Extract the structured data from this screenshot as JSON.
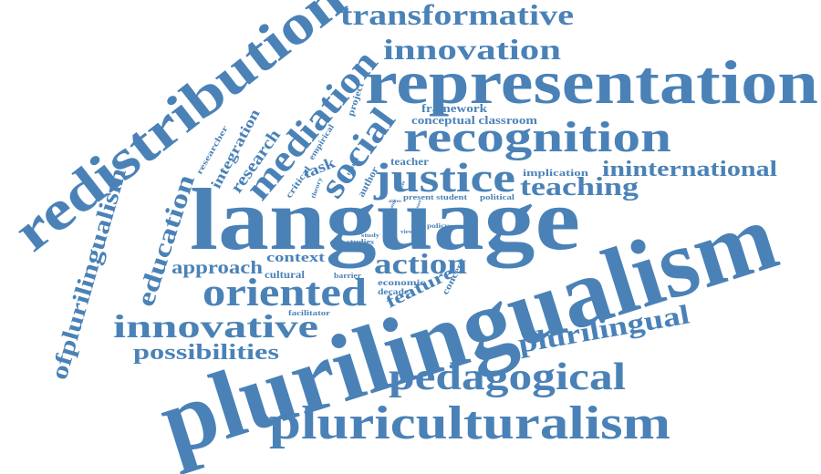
{
  "colors": {
    "word": "#4a82b7",
    "background": "#ffffff"
  },
  "words": [
    "plurilingualism",
    "language",
    "representation",
    "redistribution",
    "pluriculturalism",
    "recognition",
    "justice",
    "oriented",
    "pedagogical",
    "innovative",
    "mediation",
    "social",
    "transformative",
    "innovation",
    "ofplurilingualism",
    "plurilingual",
    "education",
    "action",
    "possibilities",
    "teaching",
    "ininternational",
    "approach",
    "research",
    "integration",
    "feature",
    "context",
    "task",
    "framework",
    "conceptual classroom",
    "researcher",
    "critical",
    "empirical",
    "project",
    "teacher",
    "implication",
    "author",
    "theory",
    "result",
    "present student",
    "political",
    "cultural",
    "barrier",
    "economic",
    "decade",
    "concept",
    "facilitator",
    "studies",
    "policy",
    "view",
    "study",
    "issue",
    "aim",
    "role",
    "address"
  ]
}
